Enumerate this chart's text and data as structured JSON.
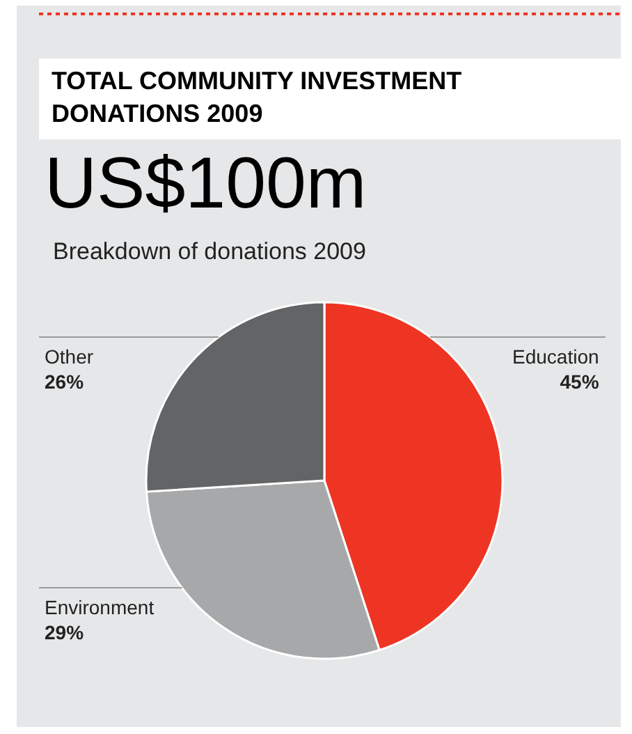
{
  "chart_data": {
    "type": "pie",
    "title": "TOTAL COMMUNITY INVESTMENT DONATIONS 2009",
    "subtitle": "US$100m",
    "annotations": [
      "Breakdown of donations 2009"
    ],
    "categories": [
      "Education",
      "Environment",
      "Other"
    ],
    "values": [
      45,
      29,
      26
    ],
    "value_labels": [
      "45%",
      "29%",
      "26%"
    ],
    "colors": [
      "#ee3524",
      "#a7a8aa",
      "#636466"
    ],
    "legend": false
  }
}
